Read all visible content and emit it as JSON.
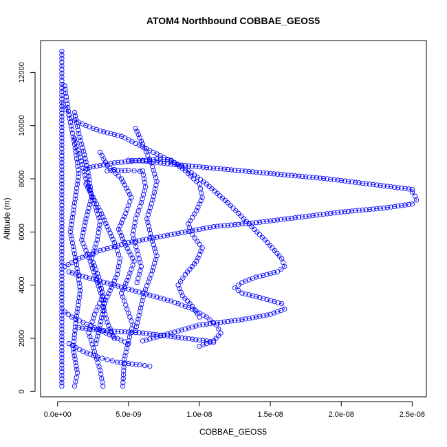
{
  "chart_data": {
    "type": "scatter",
    "title": "ATOM4 Northbound COBBAE_GEOS5",
    "xlabel": "COBBAE_GEOS5",
    "ylabel": "Altitude (m)",
    "xlim": [
      -1.2e-09,
      2.6e-08
    ],
    "ylim": [
      -200,
      13200
    ],
    "x_ticks": [
      {
        "value": 0,
        "label": "0.0e+00"
      },
      {
        "value": 5e-09,
        "label": "5.0e-09"
      },
      {
        "value": 1e-08,
        "label": "1.0e-08"
      },
      {
        "value": 1.5e-08,
        "label": "1.5e-08"
      },
      {
        "value": 2e-08,
        "label": "2.0e-08"
      },
      {
        "value": 2.5e-08,
        "label": "2.5e-08"
      }
    ],
    "y_ticks": [
      {
        "value": 0,
        "label": "0"
      },
      {
        "value": 2000,
        "label": "2000"
      },
      {
        "value": 4000,
        "label": "4000"
      },
      {
        "value": 6000,
        "label": "6000"
      },
      {
        "value": 8000,
        "label": "8000"
      },
      {
        "value": 10000,
        "label": "10000"
      },
      {
        "value": 12000,
        "label": "12000"
      }
    ],
    "grid": false,
    "legend": "none",
    "marker": "open-circle",
    "connected": true,
    "colors": {
      "series": "#0000ff",
      "axis": "#000000"
    },
    "series": [
      {
        "x": [
          2.5e-08,
          2.52e-08,
          2.53e-08,
          2.5e-08,
          2.3e-08,
          2e-08,
          1.7e-08,
          1.4e-08,
          1.1e-08,
          9e-09,
          7e-09,
          5e-09,
          3e-09,
          1.5e-09,
          5e-10
        ],
        "y": [
          7500,
          7350,
          7200,
          7050,
          6900,
          6750,
          6550,
          6350,
          6200,
          6000,
          5800,
          5600,
          5300,
          5000,
          4700
        ]
      },
      {
        "x": [
          2.5e-08,
          2.2e-08,
          1.9e-08,
          1.6e-08,
          1.3e-08,
          1e-08,
          8e-09,
          6.5e-09,
          5e-09
        ],
        "y": [
          7600,
          7800,
          8000,
          8150,
          8300,
          8450,
          8550,
          8650,
          8700
        ]
      },
      {
        "x": [
          4e-10,
          6e-10,
          8e-10,
          1.2e-09,
          2e-09,
          3e-09,
          4.5e-09,
          6e-09,
          7.5e-09,
          9e-09,
          1.05e-08,
          1.2e-08,
          1.35e-08,
          1.48e-08,
          1.58e-08,
          1.6e-08,
          1.55e-08,
          1.4e-08,
          1.3e-08,
          1.25e-08,
          1.3e-08,
          1.45e-08,
          1.58e-08,
          1.6e-08,
          1.5e-08,
          1.3e-08,
          1e-08,
          8e-09,
          6e-09
        ],
        "y": [
          10800,
          10600,
          10400,
          10200,
          10000,
          9800,
          9600,
          9200,
          8800,
          8400,
          7800,
          7100,
          6300,
          5600,
          5000,
          4700,
          4500,
          4300,
          4100,
          3900,
          3700,
          3500,
          3300,
          3100,
          2900,
          2700,
          2500,
          2200,
          1900
        ]
      },
      {
        "x": [
          8e-09,
          9e-09,
          1e-08,
          1.02e-08,
          9.8e-09,
          9.2e-09,
          9.5e-09,
          1.02e-08,
          9.8e-09,
          9e-09,
          8.5e-09,
          8.8e-09,
          9.5e-09,
          1e-08
        ],
        "y": [
          8700,
          8300,
          7800,
          7300,
          6800,
          6300,
          5900,
          5400,
          4900,
          4400,
          4000,
          3600,
          3200,
          2800
        ]
      },
      {
        "x": [
          3e-09,
          3.5e-09,
          4.5e-09,
          5.2e-09,
          4.8e-09,
          4.3e-09,
          4.8e-09,
          5.4e-09,
          5e-09,
          4.5e-09,
          4.9e-09,
          5.3e-09,
          5e-09,
          4.7e-09,
          4.6e-09
        ],
        "y": [
          9000,
          8500,
          8000,
          7300,
          6700,
          6100,
          5500,
          4900,
          4300,
          3700,
          3100,
          2500,
          1900,
          1200,
          200
        ]
      },
      {
        "x": [
          1.2e-09,
          1.6e-09,
          2e-09,
          2.5e-09,
          3e-09,
          2.8e-09,
          2.4e-09,
          2.9e-09,
          3.2e-09,
          2.6e-09,
          2.2e-09,
          2.6e-09,
          3e-09,
          3.2e-09
        ],
        "y": [
          9500,
          8800,
          8000,
          7200,
          6400,
          5700,
          5000,
          4300,
          3600,
          2900,
          2200,
          1500,
          800,
          200
        ]
      },
      {
        "x": [
          1.2e-09,
          1.5e-09,
          1.9e-09,
          2.2e-09,
          2.4e-09,
          2e-09,
          1.7e-09,
          2.3e-09,
          2.8e-09,
          3.3e-09,
          3e-09,
          2.7e-09
        ],
        "y": [
          10500,
          9700,
          8900,
          8100,
          7300,
          6500,
          5700,
          4900,
          4100,
          3300,
          2500,
          1800
        ]
      },
      {
        "x": [
          5e-10,
          8e-10,
          1.2e-09,
          1.5e-09,
          1.2e-09,
          9e-10,
          1.3e-09,
          1.6e-09,
          1.3e-09,
          1.1e-09,
          1.4e-09,
          1.2e-09
        ],
        "y": [
          11500,
          10400,
          9300,
          8200,
          7100,
          6000,
          4900,
          3800,
          2700,
          1600,
          700,
          200
        ]
      },
      {
        "x": [
          3e-10,
          3e-10,
          3e-10,
          3e-10,
          3e-10,
          3e-10,
          3e-10,
          3e-10
        ],
        "y": [
          12800,
          11000,
          9000,
          7000,
          5000,
          3000,
          1000,
          200
        ]
      },
      {
        "x": [
          5.5e-09,
          6e-09,
          6.6e-09,
          7e-09,
          6.7e-09,
          6.3e-09,
          6.6e-09,
          7e-09,
          6.6e-09,
          6.1e-09,
          5.8e-09,
          5.5e-09
        ],
        "y": [
          9900,
          9300,
          8600,
          7900,
          7200,
          6500,
          5800,
          5100,
          4400,
          3700,
          3000,
          2300
        ]
      },
      {
        "x": [
          8e-10,
          2e-09,
          4e-09,
          6e-09,
          8e-09,
          9.5e-09,
          1.05e-08,
          1.12e-08,
          1.15e-08,
          1.1e-08,
          1e-08
        ],
        "y": [
          4500,
          4300,
          4000,
          3700,
          3400,
          3100,
          2800,
          2500,
          2200,
          1900,
          1700
        ]
      },
      {
        "x": [
          1.5e-09,
          3e-09,
          4.5e-09,
          6e-09,
          7.5e-09,
          9e-09,
          1.05e-08,
          1.1e-08
        ],
        "y": [
          2400,
          2300,
          2250,
          2200,
          2100,
          2000,
          1900,
          1850
        ]
      },
      {
        "x": [
          2e-09,
          2.5e-09,
          3e-09,
          3.5e-09,
          4e-09,
          4.4e-09,
          4.2e-09,
          3.7e-09,
          3.2e-09,
          3.5e-09,
          4e-09
        ],
        "y": [
          7800,
          7300,
          6800,
          6200,
          5600,
          5000,
          4400,
          3800,
          3200,
          2600,
          2000
        ]
      },
      {
        "x": [
          6e-09,
          6.2e-09,
          5.9e-09,
          5.5e-09,
          5.3e-09,
          5.6e-09,
          5.9e-09,
          5.6e-09
        ],
        "y": [
          8300,
          7700,
          7100,
          6500,
          5900,
          5300,
          4700,
          4100
        ]
      },
      {
        "x": [
          2e-09,
          3e-09,
          4e-09,
          5e-09,
          6e-09,
          6.5e-09,
          7e-09,
          8e-09
        ],
        "y": [
          8400,
          8500,
          8600,
          8650,
          8700,
          8700,
          8750,
          8700
        ]
      },
      {
        "x": [
          3.5e-09,
          4e-09,
          4.5e-09,
          5e-09,
          5.4e-09,
          5.8e-09
        ],
        "y": [
          8300,
          8350,
          8300,
          8320,
          8300,
          8280
        ]
      },
      {
        "x": [
          5e-10,
          1e-09,
          1.8e-09,
          2.6e-09,
          3.4e-09,
          4.2e-09,
          5e-09
        ],
        "y": [
          3000,
          2800,
          2600,
          2400,
          2200,
          2000,
          1800
        ]
      },
      {
        "x": [
          8e-10,
          1.8e-09,
          2.8e-09,
          3.5e-09,
          4.2e-09,
          5e-09,
          5.8e-09,
          6.5e-09
        ],
        "y": [
          1800,
          1500,
          1300,
          1200,
          1100,
          1050,
          1000,
          950
        ]
      }
    ]
  }
}
